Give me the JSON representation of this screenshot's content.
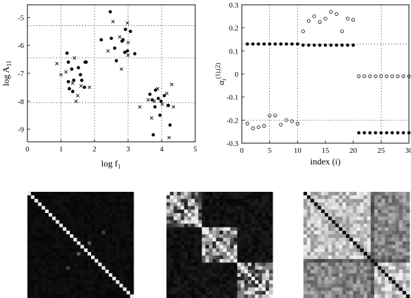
{
  "chart_data": [
    {
      "type": "scatter",
      "title": "",
      "xlabel": "log f",
      "xlabel_sub": "1",
      "ylabel": "log A",
      "ylabel_sub": "11",
      "xlim": [
        0,
        5
      ],
      "ylim": [
        -9.45,
        -4.55
      ],
      "xticks": [
        0,
        1,
        2,
        3,
        4,
        5
      ],
      "yticks": [
        -5,
        -6,
        -7,
        -8,
        -9
      ],
      "xgrid": [
        1,
        2,
        3,
        4
      ],
      "ygrid": [
        -5.3,
        -6.45,
        -8.05
      ],
      "grid": true,
      "series": [
        {
          "marker": "filled-dot",
          "points": [
            [
              1.18,
              -6.28
            ],
            [
              1.22,
              -6.6
            ],
            [
              1.32,
              -6.85
            ],
            [
              1.52,
              -6.8
            ],
            [
              1.58,
              -7.05
            ],
            [
              1.38,
              -7.25
            ],
            [
              1.22,
              -7.3
            ],
            [
              1.62,
              -7.25
            ],
            [
              1.7,
              -7.5
            ],
            [
              1.25,
              -7.55
            ],
            [
              1.35,
              -7.65
            ],
            [
              1.72,
              -6.6
            ],
            [
              1.75,
              -6.6
            ],
            [
              2.47,
              -4.8
            ],
            [
              2.2,
              -5.8
            ],
            [
              2.5,
              -5.75
            ],
            [
              2.6,
              -6.1
            ],
            [
              2.82,
              -5.85
            ],
            [
              2.85,
              -5.8
            ],
            [
              2.92,
              -5.43
            ],
            [
              3.07,
              -5.5
            ],
            [
              2.9,
              -6.25
            ],
            [
              2.65,
              -6.55
            ],
            [
              2.98,
              -6.2
            ],
            [
              3.2,
              -6.3
            ],
            [
              3.65,
              -7.75
            ],
            [
              3.82,
              -7.6
            ],
            [
              3.72,
              -7.95
            ],
            [
              3.9,
              -7.9
            ],
            [
              3.98,
              -8.0
            ],
            [
              4.08,
              -7.8
            ],
            [
              3.8,
              -8.2
            ],
            [
              3.95,
              -8.5
            ],
            [
              4.2,
              -8.15
            ],
            [
              4.25,
              -8.85
            ],
            [
              3.75,
              -9.2
            ]
          ]
        },
        {
          "marker": "cross",
          "points": [
            [
              0.88,
              -6.65
            ],
            [
              1.0,
              -7.05
            ],
            [
              1.15,
              -6.95
            ],
            [
              1.4,
              -6.45
            ],
            [
              1.35,
              -7.35
            ],
            [
              1.6,
              -7.45
            ],
            [
              1.5,
              -7.8
            ],
            [
              1.45,
              -8.0
            ],
            [
              1.85,
              -7.5
            ],
            [
              2.55,
              -5.15
            ],
            [
              2.4,
              -6.2
            ],
            [
              2.75,
              -5.7
            ],
            [
              2.98,
              -5.2
            ],
            [
              3.0,
              -5.9
            ],
            [
              3.0,
              -6.35
            ],
            [
              2.8,
              -6.85
            ],
            [
              3.35,
              -8.2
            ],
            [
              3.6,
              -7.95
            ],
            [
              3.78,
              -8.0
            ],
            [
              3.88,
              -7.55
            ],
            [
              4.15,
              -7.72
            ],
            [
              4.3,
              -7.4
            ],
            [
              4.02,
              -8.1
            ],
            [
              4.18,
              -8.15
            ],
            [
              4.35,
              -8.2
            ],
            [
              3.7,
              -8.6
            ],
            [
              4.22,
              -9.3
            ]
          ]
        }
      ]
    },
    {
      "type": "scatter",
      "title": "",
      "xlabel": "index (i)",
      "ylabel": "α",
      "ylabel_sub": "i",
      "ylabel_sup": "(1),(2)",
      "xlim": [
        0,
        30
      ],
      "ylim": [
        -0.3,
        0.3
      ],
      "xticks": [
        0,
        5,
        10,
        15,
        20,
        25,
        30
      ],
      "yticks": [
        0.3,
        0.2,
        0.1,
        0,
        -0.1,
        -0.2,
        -0.3
      ],
      "xgrid": [
        5,
        10,
        25
      ],
      "ygrid": [
        0.13,
        -0.2
      ],
      "grid": true,
      "series": [
        {
          "marker": "filled-dot",
          "x": [
            1,
            2,
            3,
            4,
            5,
            6,
            7,
            8,
            9,
            10,
            11,
            12,
            13,
            14,
            15,
            16,
            17,
            18,
            19,
            20,
            21,
            22,
            23,
            24,
            25,
            26,
            27,
            28,
            29,
            30
          ],
          "y": [
            0.13,
            0.13,
            0.13,
            0.13,
            0.13,
            0.13,
            0.13,
            0.13,
            0.13,
            0.13,
            0.125,
            0.125,
            0.125,
            0.125,
            0.125,
            0.125,
            0.125,
            0.125,
            0.125,
            0.125,
            -0.255,
            -0.255,
            -0.255,
            -0.255,
            -0.255,
            -0.255,
            -0.255,
            -0.255,
            -0.255,
            -0.255
          ]
        },
        {
          "marker": "open-circle",
          "x": [
            1,
            2,
            3,
            4,
            5,
            6,
            7,
            8,
            9,
            10,
            11,
            12,
            13,
            14,
            15,
            16,
            17,
            18,
            19,
            20,
            21,
            22,
            23,
            24,
            25,
            26,
            27,
            28,
            29,
            30
          ],
          "y": [
            -0.215,
            -0.235,
            -0.23,
            -0.225,
            -0.18,
            -0.18,
            -0.22,
            -0.2,
            -0.205,
            -0.215,
            0.185,
            0.23,
            0.25,
            0.225,
            0.24,
            0.27,
            0.26,
            0.185,
            0.24,
            0.235,
            -0.01,
            -0.01,
            -0.01,
            -0.01,
            -0.01,
            -0.01,
            -0.01,
            -0.01,
            -0.01,
            -0.01
          ]
        }
      ]
    },
    {
      "type": "heatmap",
      "title": "",
      "variant": "identity-like",
      "grid_size": 30,
      "colormap": "black-to-white"
    },
    {
      "type": "heatmap",
      "title": "",
      "variant": "block-diagonal-3",
      "grid_size": 30,
      "block_size": 10,
      "colormap": "black-to-white"
    },
    {
      "type": "heatmap",
      "title": "",
      "variant": "two-block-diffuse",
      "grid_size": 30,
      "colormap": "black-to-white"
    }
  ]
}
